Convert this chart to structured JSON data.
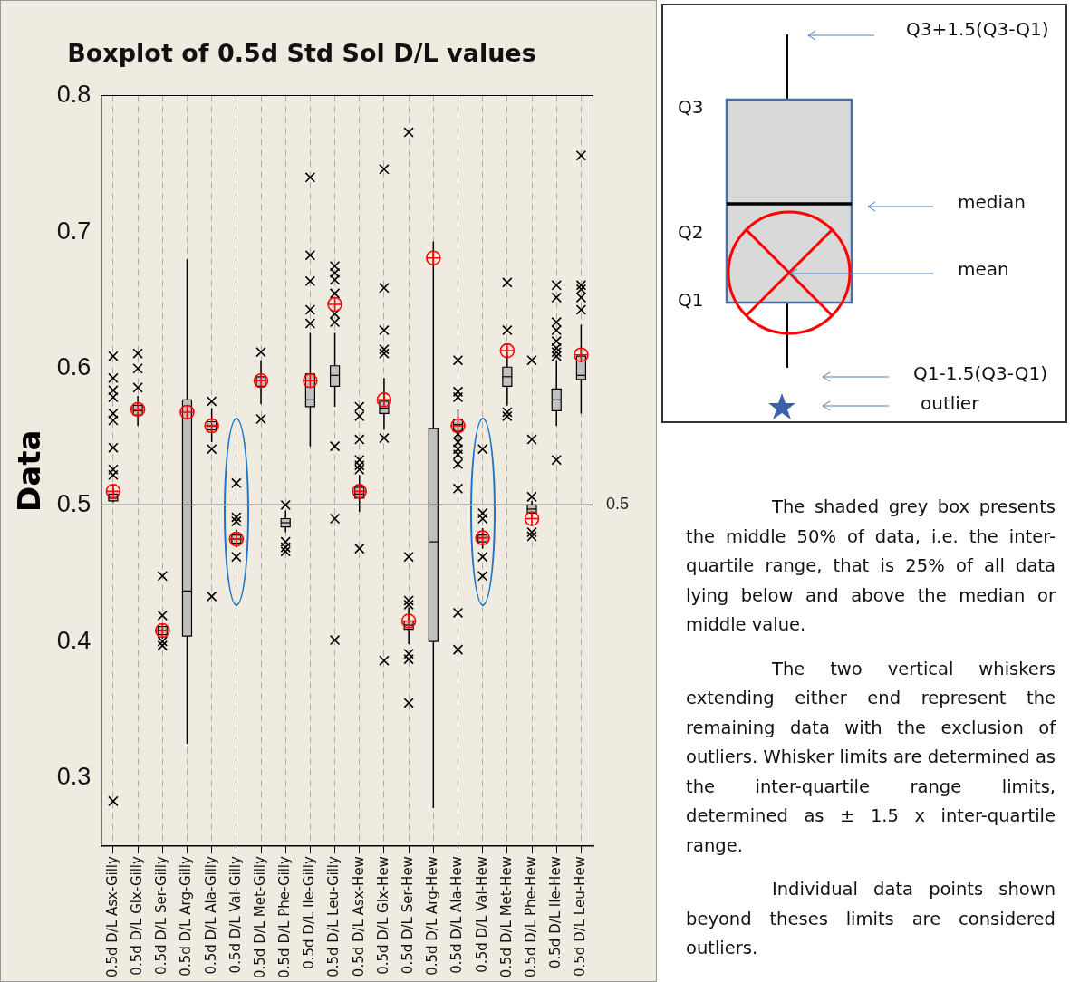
{
  "chart_data": {
    "type": "box",
    "title": "Boxplot of 0.5d Std Sol D/L values",
    "ylabel": "Data",
    "categories": [
      "0.5d D/L Asx-Gilly",
      "0.5d D/L Glx-Gilly",
      "0.5d D/L Ser-Gilly",
      "0.5d D/L Arg-Gilly",
      "0.5d D/L Ala-Gilly",
      "0.5d D/L Val-Gilly",
      "0.5d D/L Met-Gilly",
      "0.5d D/L Phe-Gilly",
      "0.5d D/L Ile-Gilly",
      "0.5d D/L Leu-Gilly",
      "0.5d D/L Asx-Hew",
      "0.5d D/L Glx-Hew",
      "0.5d D/L Ser-Hew",
      "0.5d D/L Arg-Hew",
      "0.5d D/L Ala-Hew",
      "0.5d D/L Val-Hew",
      "0.5d D/L Met-Hew",
      "0.5d D/L Phe-Hew",
      "0.5d D/L Ile-Hew",
      "0.5d D/L Leu-Hew"
    ],
    "boxes": [
      {
        "low": 0.502,
        "q1": 0.503,
        "median": 0.505,
        "q3": 0.508,
        "high": 0.512,
        "mean": 0.51,
        "outliers": [
          0.609,
          0.593,
          0.584,
          0.579,
          0.567,
          0.562,
          0.542,
          0.526,
          0.522,
          0.283
        ]
      },
      {
        "low": 0.558,
        "q1": 0.566,
        "median": 0.569,
        "q3": 0.573,
        "high": 0.58,
        "mean": 0.57,
        "outliers": [
          0.611,
          0.6,
          0.586
        ]
      },
      {
        "low": 0.402,
        "q1": 0.405,
        "median": 0.408,
        "q3": 0.411,
        "high": 0.413,
        "mean": 0.408,
        "outliers": [
          0.448,
          0.419,
          0.4,
          0.397
        ]
      },
      {
        "low": 0.325,
        "q1": 0.404,
        "median": 0.437,
        "q3": 0.577,
        "high": 0.68,
        "mean": 0.568
      },
      {
        "low": 0.546,
        "q1": 0.555,
        "median": 0.558,
        "q3": 0.561,
        "high": 0.571,
        "mean": 0.558,
        "outliers": [
          0.576,
          0.541,
          0.433
        ]
      },
      {
        "low": 0.469,
        "q1": 0.472,
        "median": 0.475,
        "q3": 0.478,
        "high": 0.482,
        "mean": 0.475,
        "outliers": [
          0.516,
          0.491,
          0.488,
          0.462
        ]
      },
      {
        "low": 0.574,
        "q1": 0.587,
        "median": 0.591,
        "q3": 0.594,
        "high": 0.606,
        "mean": 0.591,
        "outliers": [
          0.612,
          0.563
        ]
      },
      {
        "low": 0.48,
        "q1": 0.484,
        "median": 0.487,
        "q3": 0.49,
        "high": 0.496,
        "outliers": [
          0.5,
          0.473,
          0.469,
          0.466
        ]
      },
      {
        "low": 0.543,
        "q1": 0.572,
        "median": 0.577,
        "q3": 0.596,
        "high": 0.626,
        "mean": 0.591,
        "outliers": [
          0.74,
          0.683,
          0.664,
          0.643,
          0.633
        ]
      },
      {
        "low": 0.572,
        "q1": 0.587,
        "median": 0.595,
        "q3": 0.602,
        "high": 0.626,
        "mean": 0.647,
        "outliers": [
          0.675,
          0.67,
          0.665,
          0.655,
          0.64,
          0.634,
          0.543,
          0.49,
          0.401
        ]
      },
      {
        "low": 0.495,
        "q1": 0.505,
        "median": 0.508,
        "q3": 0.513,
        "high": 0.522,
        "mean": 0.51,
        "outliers": [
          0.572,
          0.565,
          0.548,
          0.533,
          0.529,
          0.526,
          0.468
        ]
      },
      {
        "low": 0.555,
        "q1": 0.567,
        "median": 0.571,
        "q3": 0.576,
        "high": 0.593,
        "mean": 0.577,
        "outliers": [
          0.746,
          0.659,
          0.628,
          0.614,
          0.611,
          0.549,
          0.386
        ]
      },
      {
        "low": 0.398,
        "q1": 0.409,
        "median": 0.412,
        "q3": 0.415,
        "high": 0.425,
        "mean": 0.415,
        "outliers": [
          0.773,
          0.462,
          0.43,
          0.427,
          0.391,
          0.387,
          0.355
        ]
      },
      {
        "low": 0.278,
        "q1": 0.4,
        "median": 0.473,
        "q3": 0.556,
        "high": 0.693,
        "mean": 0.681
      },
      {
        "low": 0.547,
        "q1": 0.554,
        "median": 0.559,
        "q3": 0.563,
        "high": 0.57,
        "mean": 0.558,
        "outliers": [
          0.606,
          0.583,
          0.579,
          0.552,
          0.546,
          0.541,
          0.537,
          0.53,
          0.512,
          0.421,
          0.394
        ]
      },
      {
        "low": 0.468,
        "q1": 0.473,
        "median": 0.476,
        "q3": 0.478,
        "high": 0.483,
        "mean": 0.476,
        "outliers": [
          0.541,
          0.494,
          0.49,
          0.462,
          0.448
        ]
      },
      {
        "low": 0.573,
        "q1": 0.587,
        "median": 0.594,
        "q3": 0.601,
        "high": 0.61,
        "mean": 0.613,
        "outliers": [
          0.663,
          0.628,
          0.568,
          0.565
        ]
      },
      {
        "low": 0.49,
        "q1": 0.494,
        "median": 0.497,
        "q3": 0.5,
        "high": 0.503,
        "mean": 0.49,
        "outliers": [
          0.606,
          0.548,
          0.506,
          0.48,
          0.477
        ]
      },
      {
        "low": 0.558,
        "q1": 0.569,
        "median": 0.577,
        "q3": 0.585,
        "high": 0.606,
        "outliers": [
          0.661,
          0.652,
          0.634,
          0.628,
          0.62,
          0.615,
          0.612,
          0.609,
          0.533
        ]
      },
      {
        "low": 0.567,
        "q1": 0.592,
        "median": 0.595,
        "q3": 0.609,
        "high": 0.632,
        "mean": 0.61,
        "outliers": [
          0.756,
          0.661,
          0.658,
          0.652,
          0.643
        ]
      }
    ],
    "ylim": [
      0.25,
      0.8
    ],
    "yticks": [
      0.3,
      0.4,
      0.5,
      0.6,
      0.7,
      0.8
    ],
    "grid": "x",
    "legend": false,
    "ref_lines": [
      {
        "axis": "y",
        "value": 0.5,
        "label": "0.5"
      }
    ],
    "annotations": [
      "Q3+1.5(Q3-Q1)",
      "Q3",
      "median",
      "Q2",
      "mean",
      "Q1",
      "Q1-1.5(Q3-Q1)",
      "outlier",
      "The shaded grey box presents the middle 50% of data, i.e. the inter-quartile range, that is 25% of all data lying below and above the median or middle value.",
      "The two vertical whiskers extending either end represent the remaining data with the exclusion of outliers. Whisker limits are determined as the inter-quartile range limits, determined as ± 1.5 x inter-quartile range.",
      "Individual data points shown beyond theses limits are considered outliers."
    ]
  }
}
